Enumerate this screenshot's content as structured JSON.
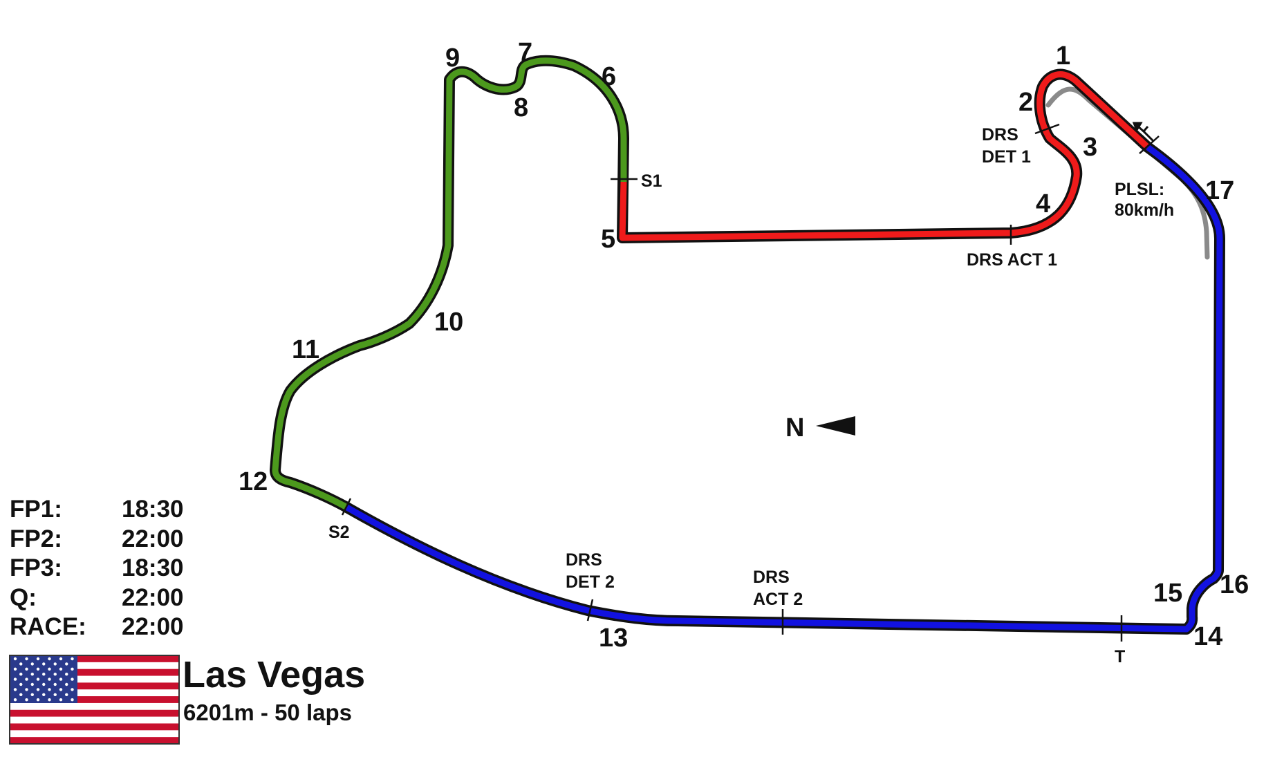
{
  "circuit": {
    "name": "Las Vegas",
    "info": "6201m - 50 laps"
  },
  "flag": "usa-flag",
  "compass": {
    "label": "N",
    "icon": "arrow-left-icon"
  },
  "colors": {
    "sector1": "#ef1b1b",
    "sector2": "#4c991d",
    "sector3": "#1212e0",
    "outline": "#111111",
    "pitlane": "#8a8a8a"
  },
  "turns": {
    "t1": "1",
    "t2": "2",
    "t3": "3",
    "t4": "4",
    "t5": "5",
    "t6": "6",
    "t7": "7",
    "t8": "8",
    "t9": "9",
    "t10": "10",
    "t11": "11",
    "t12": "12",
    "t13": "13",
    "t14": "14",
    "t15": "15",
    "t16": "16",
    "t17": "17"
  },
  "markers": {
    "s1": "S1",
    "s2": "S2",
    "trap": "T",
    "drs_det_1": [
      "DRS",
      "DET 1"
    ],
    "drs_act_1": "DRS ACT 1",
    "drs_det_2": [
      "DRS",
      "DET 2"
    ],
    "drs_act_2": [
      "DRS",
      "ACT 2"
    ],
    "pit_limit": [
      "PLSL:",
      "80km/h"
    ]
  },
  "schedule": [
    {
      "session": "FP1:",
      "time": "18:30"
    },
    {
      "session": "FP2:",
      "time": "22:00"
    },
    {
      "session": "FP3:",
      "time": "18:30"
    },
    {
      "session": "Q:",
      "time": "22:00"
    },
    {
      "session": "RACE:",
      "time": "22:00"
    }
  ]
}
